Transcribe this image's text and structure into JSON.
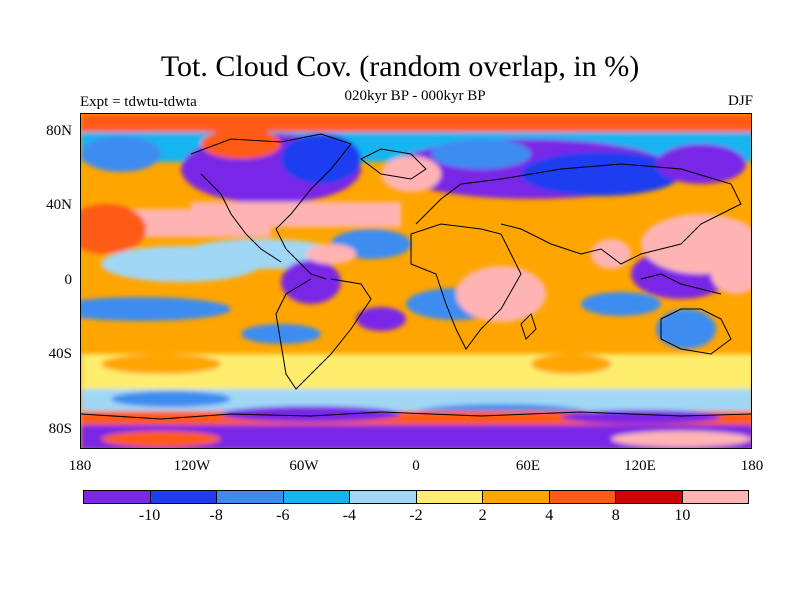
{
  "title": "Tot. Cloud Cov. (random overlap, in %)",
  "subtitle": "020kyr BP - 000kyr BP",
  "left_label": "Expt = tdwtu-tdwta",
  "season": "DJF",
  "lat_ticks": [
    "80N",
    "40N",
    "0",
    "40S",
    "80S"
  ],
  "lon_ticks": [
    "180",
    "120W",
    "60W",
    "0",
    "60E",
    "120E",
    "180"
  ],
  "colorbar": {
    "colors": [
      "#7a28e6",
      "#1e3cf0",
      "#3c8cf0",
      "#14b4f0",
      "#a0d7f5",
      "#ffed6e",
      "#ffa500",
      "#ff5a14",
      "#d20000",
      "#ffb4b4"
    ],
    "labels": [
      "-10",
      "-8",
      "-6",
      "-4",
      "-2",
      "2",
      "4",
      "8",
      "10"
    ]
  }
}
